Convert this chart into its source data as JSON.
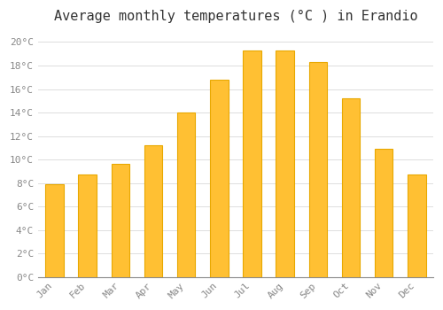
{
  "title": "Average monthly temperatures (°C ) in Erandio",
  "months": [
    "Jan",
    "Feb",
    "Mar",
    "Apr",
    "May",
    "Jun",
    "Jul",
    "Aug",
    "Sep",
    "Oct",
    "Nov",
    "Dec"
  ],
  "values": [
    7.9,
    8.7,
    9.6,
    11.2,
    14.0,
    16.8,
    19.3,
    19.3,
    18.3,
    15.2,
    10.9,
    8.7
  ],
  "bar_color": "#FFC033",
  "bar_edge_color": "#E8A800",
  "background_color": "#FFFFFF",
  "plot_bg_color": "#FFFFFF",
  "grid_color": "#DDDDDD",
  "ylim": [
    0,
    21
  ],
  "yticks": [
    0,
    2,
    4,
    6,
    8,
    10,
    12,
    14,
    16,
    18,
    20
  ],
  "title_fontsize": 11,
  "tick_fontsize": 8,
  "tick_label_color": "#888888",
  "bar_width": 0.55
}
